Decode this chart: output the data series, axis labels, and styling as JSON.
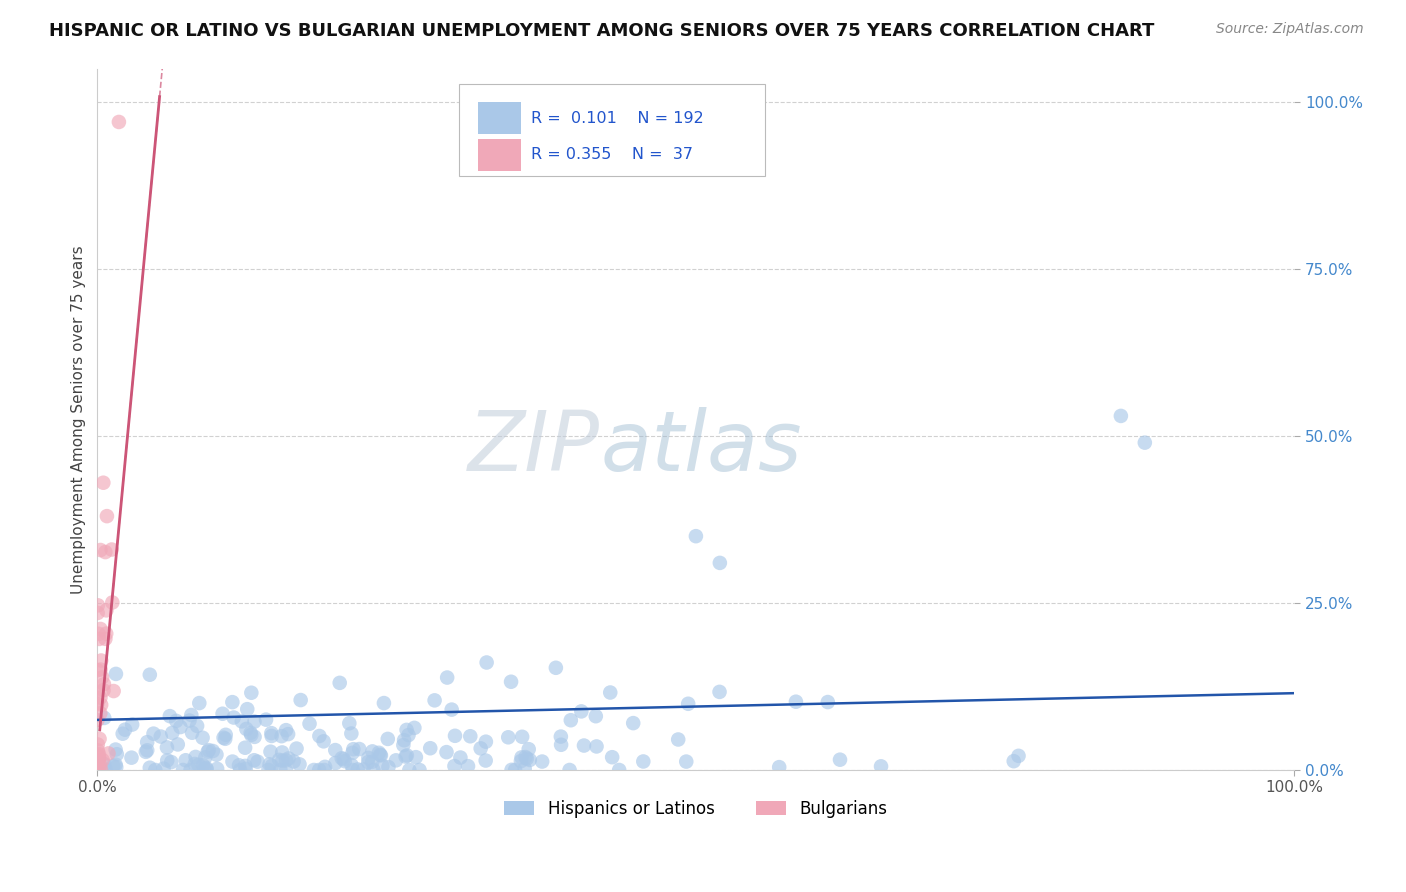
{
  "title": "HISPANIC OR LATINO VS BULGARIAN UNEMPLOYMENT AMONG SENIORS OVER 75 YEARS CORRELATION CHART",
  "source": "Source: ZipAtlas.com",
  "ylabel": "Unemployment Among Seniors over 75 years",
  "xlim": [
    0.0,
    1.0
  ],
  "ylim": [
    0.0,
    1.05
  ],
  "x_ticks": [
    0.0,
    1.0
  ],
  "x_tick_labels": [
    "0.0%",
    "100.0%"
  ],
  "y_ticks": [
    0.0,
    0.25,
    0.5,
    0.75,
    1.0
  ],
  "y_tick_labels": [
    "0.0%",
    "25.0%",
    "50.0%",
    "75.0%",
    "100.0%"
  ],
  "blue_color": "#aac8e8",
  "pink_color": "#f0a8b8",
  "blue_line_color": "#2255aa",
  "pink_line_color": "#cc5577",
  "R_blue": 0.101,
  "N_blue": 192,
  "R_pink": 0.355,
  "N_pink": 37,
  "watermark_zip": "ZIP",
  "watermark_atlas": "atlas",
  "background_color": "#ffffff",
  "grid_color": "#cccccc",
  "legend_label_blue": "Hispanics or Latinos",
  "legend_label_pink": "Bulgarians"
}
